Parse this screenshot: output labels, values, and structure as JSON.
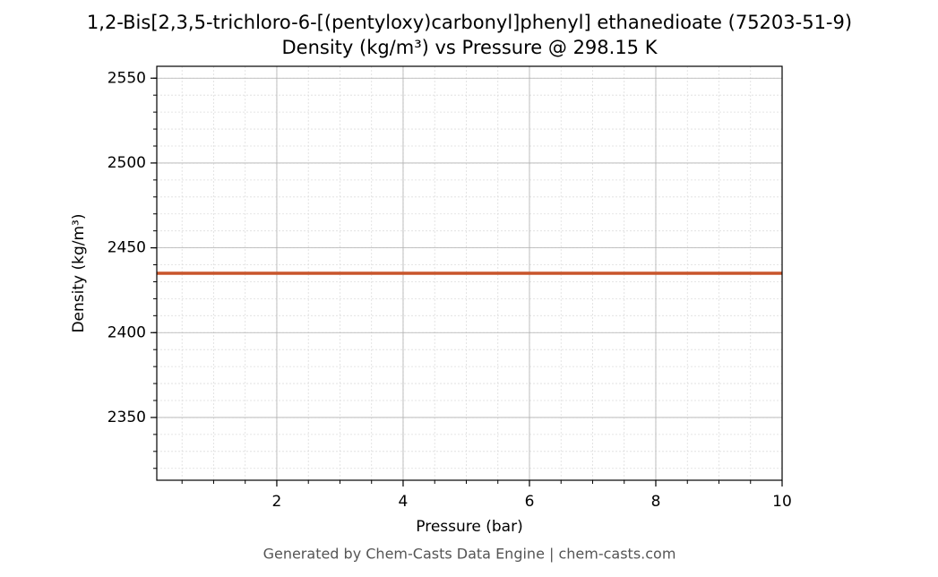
{
  "chart_data": {
    "type": "line",
    "title": "1,2-Bis[2,3,5-trichloro-6-[(pentyloxy)carbonyl]phenyl] ethanedioate (75203-51-9)",
    "subtitle": "Density (kg/m³) vs Pressure @ 298.15 K",
    "x_label": "Pressure (bar)",
    "y_label": "Density (kg/m³)",
    "x": [
      0.1,
      10
    ],
    "values": [
      2435,
      2435
    ],
    "color": "#c8552b",
    "xlim": [
      0.1,
      10
    ],
    "xticks": [
      2,
      4,
      6,
      8,
      10
    ],
    "ylim": [
      2313,
      2557
    ],
    "yticks": [
      2350,
      2400,
      2450,
      2500,
      2550
    ],
    "grid": true,
    "minor_grid": true,
    "source": "Generated by Chem-Casts Data Engine | chem-casts.com"
  }
}
